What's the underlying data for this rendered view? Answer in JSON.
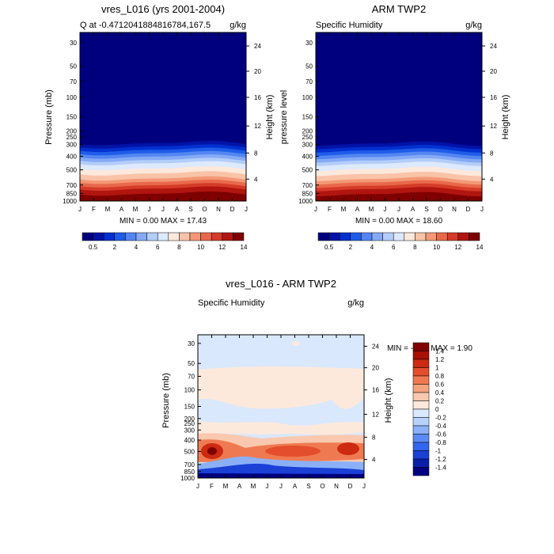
{
  "colors": {
    "humidity_scale": [
      "#00007f",
      "#0013a6",
      "#0030d0",
      "#1f5ce8",
      "#5486f2",
      "#85aaf5",
      "#b3cdf9",
      "#dde9fd",
      "#fde8dc",
      "#f9c3a8",
      "#f39876",
      "#e9684b",
      "#d53b28",
      "#b11510",
      "#7f0000"
    ],
    "diff_scale": [
      "#000080",
      "#0a1fa8",
      "#1a40d6",
      "#3366ee",
      "#5b8af5",
      "#8bb0f8",
      "#b7d3fb",
      "#d9e8fc",
      "#fde9dc",
      "#f9c8ae",
      "#f5a27e",
      "#ef7a52",
      "#e44e2c",
      "#cc2a12",
      "#a80f05",
      "#7f0000"
    ]
  },
  "chart_data": [
    {
      "type": "heatmap",
      "title": "vres_L016 (yrs 2001-2004)",
      "subtitle_left": "Q at -0.4712041884816784,167.5",
      "subtitle_right": "g/kg",
      "ylabel": "Pressure (mb)",
      "ylabel_right": "Height (km)",
      "x_ticks": [
        "J",
        "F",
        "M",
        "A",
        "M",
        "J",
        "J",
        "A",
        "S",
        "O",
        "N",
        "D",
        "J"
      ],
      "y_ticks": [
        "30",
        "50",
        "70",
        "100",
        "150",
        "200",
        "250",
        "300",
        "400",
        "500",
        "700",
        "850",
        "1000"
      ],
      "y_right_ticks": [
        "24",
        "20",
        "16",
        "12",
        "8",
        "4"
      ],
      "stats": "MIN =   0.00 MAX =  17.43",
      "min": 0.0,
      "max": 17.43,
      "colorbar_labels": [
        "0.5",
        "2",
        "4",
        "6",
        "8",
        "10",
        "12",
        "14"
      ]
    },
    {
      "type": "heatmap",
      "title": "ARM TWP2",
      "subtitle_left": "Specific Humidity",
      "subtitle_right": "g/kg",
      "ylabel": "pressure level",
      "ylabel_right": "Height (km)",
      "x_ticks": [
        "J",
        "F",
        "M",
        "A",
        "M",
        "J",
        "J",
        "A",
        "S",
        "O",
        "N",
        "D",
        "J"
      ],
      "y_ticks": [
        "30",
        "50",
        "70",
        "100",
        "150",
        "200",
        "250",
        "300",
        "400",
        "500",
        "700",
        "850",
        "1000"
      ],
      "y_right_ticks": [
        "24",
        "20",
        "16",
        "12",
        "8",
        "4"
      ],
      "stats": "MIN =   0.00 MAX =  18.60",
      "min": 0.0,
      "max": 18.6,
      "colorbar_labels": [
        "0.5",
        "2",
        "4",
        "6",
        "8",
        "10",
        "12",
        "14"
      ]
    },
    {
      "type": "heatmap",
      "title": "vres_L016 - ARM TWP2",
      "subtitle_left": "Specific Humidity",
      "subtitle_right": "g/kg",
      "ylabel": "Pressure (mb)",
      "ylabel_right": "Height (km)",
      "x_ticks": [
        "J",
        "F",
        "M",
        "A",
        "M",
        "J",
        "J",
        "A",
        "S",
        "O",
        "N",
        "D",
        "J"
      ],
      "y_ticks": [
        "30",
        "50",
        "70",
        "100",
        "150",
        "200",
        "250",
        "300",
        "400",
        "500",
        "700",
        "850",
        "1000"
      ],
      "y_right_ticks": [
        "24",
        "20",
        "16",
        "12",
        "8",
        "4"
      ],
      "stats": "MIN =  -2.41 MAX =   1.90",
      "min": -2.41,
      "max": 1.9,
      "colorbar_labels": [
        "1.4",
        "1.2",
        "1",
        "0.8",
        "0.6",
        "0.4",
        "0.2",
        "0",
        "-0.2",
        "-0.4",
        "-0.6",
        "-0.8",
        "-1",
        "-1.2",
        "-1.4"
      ]
    }
  ]
}
